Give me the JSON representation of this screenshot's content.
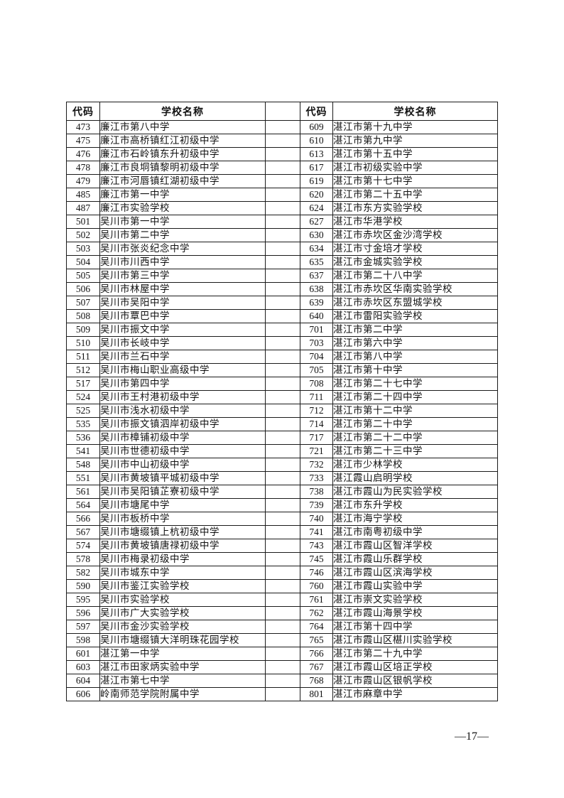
{
  "page": {
    "number_label": "—17—"
  },
  "table": {
    "header": {
      "code_label": "代码",
      "name_label": "学校名称"
    },
    "left_rows": [
      {
        "code": "473",
        "name": "廉江市第八中学"
      },
      {
        "code": "475",
        "name": "廉江市高桥镇红江初级中学"
      },
      {
        "code": "476",
        "name": "廉江市石岭镇东升初级中学"
      },
      {
        "code": "478",
        "name": "廉江市良垌镇黎明初级中学"
      },
      {
        "code": "479",
        "name": "廉江市河唇镇红湖初级中学"
      },
      {
        "code": "485",
        "name": "廉江市第一中学"
      },
      {
        "code": "487",
        "name": "廉江市实验学校"
      },
      {
        "code": "501",
        "name": "吴川市第一中学"
      },
      {
        "code": "502",
        "name": "吴川市第二中学"
      },
      {
        "code": "503",
        "name": "吴川市张炎纪念中学"
      },
      {
        "code": "504",
        "name": "吴川市川西中学"
      },
      {
        "code": "505",
        "name": "吴川市第三中学"
      },
      {
        "code": "506",
        "name": "吴川市林屋中学"
      },
      {
        "code": "507",
        "name": "吴川市吴阳中学"
      },
      {
        "code": "508",
        "name": "吴川市覃巴中学"
      },
      {
        "code": "509",
        "name": "吴川市振文中学"
      },
      {
        "code": "510",
        "name": "吴川市长岐中学"
      },
      {
        "code": "511",
        "name": "吴川市兰石中学"
      },
      {
        "code": "512",
        "name": "吴川市梅山职业高级中学"
      },
      {
        "code": "517",
        "name": "吴川市第四中学"
      },
      {
        "code": "524",
        "name": "吴川市王村港初级中学"
      },
      {
        "code": "525",
        "name": "吴川市浅水初级中学"
      },
      {
        "code": "535",
        "name": "吴川市振文镇泗岸初级中学"
      },
      {
        "code": "536",
        "name": "吴川市樟铺初级中学"
      },
      {
        "code": "541",
        "name": "吴川市世德初级中学"
      },
      {
        "code": "548",
        "name": "吴川市中山初级中学"
      },
      {
        "code": "551",
        "name": "吴川市黄坡镇平城初级中学"
      },
      {
        "code": "561",
        "name": "吴川市吴阳镇芷寮初级中学"
      },
      {
        "code": "564",
        "name": "吴川市塘尾中学"
      },
      {
        "code": "566",
        "name": "吴川市板桥中学"
      },
      {
        "code": "567",
        "name": "吴川市塘缀镇上杭初级中学"
      },
      {
        "code": "574",
        "name": "吴川市黄坡镇唐禄初级中学"
      },
      {
        "code": "578",
        "name": "吴川市梅录初级中学"
      },
      {
        "code": "582",
        "name": "吴川市城东中学"
      },
      {
        "code": "590",
        "name": "吴川市鉴江实验学校"
      },
      {
        "code": "595",
        "name": "吴川市实验学校"
      },
      {
        "code": "596",
        "name": "吴川市广大实验学校"
      },
      {
        "code": "597",
        "name": "吴川市金沙实验学校"
      },
      {
        "code": "598",
        "name": "吴川市塘缀镇大洋明珠花园学校"
      },
      {
        "code": "601",
        "name": "湛江第一中学"
      },
      {
        "code": "603",
        "name": "湛江市田家炳实验中学"
      },
      {
        "code": "604",
        "name": "湛江市第七中学"
      },
      {
        "code": "606",
        "name": "岭南师范学院附属中学"
      }
    ],
    "right_rows": [
      {
        "code": "609",
        "name": "湛江市第十九中学"
      },
      {
        "code": "610",
        "name": "湛江市第九中学"
      },
      {
        "code": "613",
        "name": "湛江市第十五中学"
      },
      {
        "code": "617",
        "name": "湛江市初级实验中学"
      },
      {
        "code": "619",
        "name": "湛江市第十七中学"
      },
      {
        "code": "620",
        "name": "湛江市第二十五中学"
      },
      {
        "code": "624",
        "name": "湛江市东方实验学校"
      },
      {
        "code": "627",
        "name": "湛江市华港学校"
      },
      {
        "code": "630",
        "name": "湛江市赤坎区金沙湾学校"
      },
      {
        "code": "634",
        "name": "湛江市寸金培才学校"
      },
      {
        "code": "635",
        "name": "湛江市金城实验学校"
      },
      {
        "code": "637",
        "name": "湛江市第二十八中学"
      },
      {
        "code": "638",
        "name": "湛江市赤坎区华南实验学校"
      },
      {
        "code": "639",
        "name": "湛江市赤坎区东盟城学校"
      },
      {
        "code": "640",
        "name": "湛江市雷阳实验学校"
      },
      {
        "code": "701",
        "name": "湛江市第二中学"
      },
      {
        "code": "703",
        "name": "湛江市第六中学"
      },
      {
        "code": "704",
        "name": "湛江市第八中学"
      },
      {
        "code": "705",
        "name": "湛江市第十中学"
      },
      {
        "code": "708",
        "name": "湛江市第二十七中学"
      },
      {
        "code": "711",
        "name": "湛江市第二十四中学"
      },
      {
        "code": "712",
        "name": "湛江市第十二中学"
      },
      {
        "code": "714",
        "name": "湛江市第二十中学"
      },
      {
        "code": "717",
        "name": "湛江市第二十二中学"
      },
      {
        "code": "721",
        "name": "湛江市第二十三中学"
      },
      {
        "code": "732",
        "name": "湛江市少林学校"
      },
      {
        "code": "733",
        "name": "湛江霞山启明学校"
      },
      {
        "code": "738",
        "name": "湛江市霞山为民实验学校"
      },
      {
        "code": "739",
        "name": "湛江市东升学校"
      },
      {
        "code": "740",
        "name": "湛江市海宁学校"
      },
      {
        "code": "741",
        "name": "湛江市南粤初级中学"
      },
      {
        "code": "743",
        "name": "湛江市霞山区智洋学校"
      },
      {
        "code": "745",
        "name": "湛江市霞山乐群学校"
      },
      {
        "code": "746",
        "name": "湛江市霞山区滨海学校"
      },
      {
        "code": "760",
        "name": "湛江市霞山实验中学"
      },
      {
        "code": "761",
        "name": "湛江市崇文实验学校"
      },
      {
        "code": "762",
        "name": "湛江市霞山海景学校"
      },
      {
        "code": "764",
        "name": "湛江市第十四中学"
      },
      {
        "code": "765",
        "name": "湛江市霞山区椹川实验学校"
      },
      {
        "code": "766",
        "name": "湛江市第二十九中学"
      },
      {
        "code": "767",
        "name": "湛江市霞山区培正学校"
      },
      {
        "code": "768",
        "name": "湛江市霞山区银帆学校"
      },
      {
        "code": "801",
        "name": "湛江市麻章中学"
      }
    ]
  }
}
